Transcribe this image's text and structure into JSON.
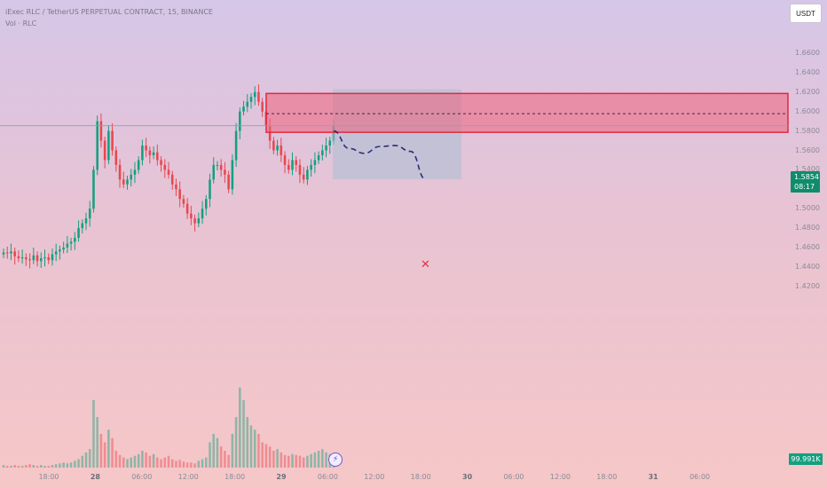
{
  "header": {
    "title": "iExec RLC / TetherUS PERPETUAL CONTRACT, 15, BINANCE",
    "volume_label": "Vol · RLC"
  },
  "toolbar": {
    "currency_label": "USDT"
  },
  "price_badge": {
    "price": "1.5854",
    "countdown": "08:17"
  },
  "volume_badge": {
    "value": "99.991K"
  },
  "icons": {
    "bolt": "lightning-icon",
    "target": "x-marker-icon"
  },
  "colors": {
    "up": "#13a07f",
    "down": "#e8474f",
    "zone_border": "#e02a3e",
    "zone_fill": "#f0607a",
    "path": "#2b2b7a"
  },
  "chart_data": {
    "type": "candlestick",
    "title": "iExec RLC / TetherUS PERPETUAL CONTRACT, 15, BINANCE",
    "y_ticks": [
      "1.6600",
      "1.6400",
      "1.6200",
      "1.6000",
      "1.5800",
      "1.5600",
      "1.5400",
      "1.5200",
      "1.5000",
      "1.4800",
      "1.4600",
      "1.4400",
      "1.4200"
    ],
    "x_ticks": [
      {
        "label": "18:00",
        "bold": false
      },
      {
        "label": "28",
        "bold": true
      },
      {
        "label": "06:00",
        "bold": false
      },
      {
        "label": "12:00",
        "bold": false
      },
      {
        "label": "18:00",
        "bold": false
      },
      {
        "label": "29",
        "bold": true
      },
      {
        "label": "06:00",
        "bold": false
      },
      {
        "label": "12:00",
        "bold": false
      },
      {
        "label": "18:00",
        "bold": false
      },
      {
        "label": "30",
        "bold": true
      },
      {
        "label": "06:00",
        "bold": false
      },
      {
        "label": "12:00",
        "bold": false
      },
      {
        "label": "18:00",
        "bold": false
      },
      {
        "label": "31",
        "bold": true
      },
      {
        "label": "06:00",
        "bold": false
      }
    ],
    "ylim": [
      1.415,
      1.67
    ],
    "last_price": 1.5854,
    "resistance_zone": {
      "low": 1.5786,
      "high": 1.6186,
      "mid": 1.5978
    },
    "projection_box": {
      "top": 1.623,
      "bottom": 1.5303
    },
    "projected_path": [
      1.58,
      1.562,
      1.557,
      1.564,
      1.565,
      1.559,
      1.53
    ],
    "closes": [
      1.455,
      1.454,
      1.456,
      1.451,
      1.449,
      1.45,
      1.448,
      1.447,
      1.452,
      1.446,
      1.449,
      1.45,
      1.447,
      1.453,
      1.456,
      1.458,
      1.46,
      1.464,
      1.466,
      1.47,
      1.48,
      1.485,
      1.49,
      1.5,
      1.54,
      1.59,
      1.57,
      1.55,
      1.58,
      1.56,
      1.545,
      1.53,
      1.525,
      1.53,
      1.535,
      1.54,
      1.55,
      1.565,
      1.56,
      1.555,
      1.558,
      1.55,
      1.545,
      1.54,
      1.535,
      1.525,
      1.52,
      1.51,
      1.505,
      1.495,
      1.49,
      1.485,
      1.49,
      1.5,
      1.51,
      1.53,
      1.545,
      1.545,
      1.54,
      1.535,
      1.52,
      1.55,
      1.58,
      1.6,
      1.605,
      1.61,
      1.615,
      1.62,
      1.61,
      1.6,
      1.585,
      1.57,
      1.56,
      1.565,
      1.555,
      1.545,
      1.54,
      1.55,
      1.545,
      1.535,
      1.53,
      1.54,
      1.545,
      1.55,
      1.555,
      1.56,
      1.565,
      1.57,
      1.5854
    ],
    "volumes": [
      3,
      2,
      2,
      3,
      2,
      2,
      3,
      4,
      3,
      2,
      3,
      2,
      2,
      3,
      4,
      5,
      6,
      5,
      6,
      8,
      10,
      14,
      18,
      22,
      80,
      60,
      40,
      30,
      45,
      35,
      20,
      15,
      12,
      10,
      12,
      14,
      16,
      20,
      18,
      14,
      16,
      12,
      10,
      12,
      14,
      10,
      8,
      9,
      7,
      6,
      6,
      5,
      8,
      10,
      12,
      30,
      40,
      35,
      25,
      20,
      15,
      40,
      60,
      95,
      80,
      60,
      50,
      45,
      40,
      30,
      28,
      25,
      20,
      22,
      18,
      15,
      14,
      16,
      15,
      14,
      12,
      14,
      16,
      18,
      20,
      22,
      18,
      16,
      14
    ]
  }
}
